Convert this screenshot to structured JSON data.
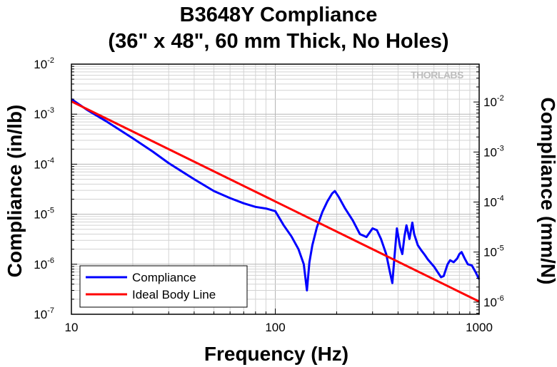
{
  "chart_data": {
    "type": "line",
    "title": "B3648Y Compliance",
    "subtitle": "(36\" x 48\", 60 mm Thick, No Holes)",
    "xlabel": "Frequency (Hz)",
    "ylabel": "Compliance (in/lb)",
    "ylabel_right": "Compliance (mm/N)",
    "x_scale": "log",
    "y_scale": "log",
    "xlim": [
      10,
      1000
    ],
    "ylim": [
      1e-07,
      0.01
    ],
    "ylim_right": [
      5.71e-07,
      0.0571
    ],
    "grid": true,
    "legend_position": "bottom-left",
    "watermark": "THORLABS",
    "x_ticks": [
      {
        "value": 10,
        "label": "10"
      },
      {
        "value": 100,
        "label": "100"
      },
      {
        "value": 1000,
        "label": "1000"
      }
    ],
    "y_ticks": [
      {
        "exp": -7,
        "base": "10",
        "sup": "-7"
      },
      {
        "exp": -6,
        "base": "10",
        "sup": "-6"
      },
      {
        "exp": -5,
        "base": "10",
        "sup": "-5"
      },
      {
        "exp": -4,
        "base": "10",
        "sup": "-4"
      },
      {
        "exp": -3,
        "base": "10",
        "sup": "-3"
      },
      {
        "exp": -2,
        "base": "10",
        "sup": "-2"
      }
    ],
    "y_ticks_right": [
      {
        "exp": -6,
        "base": "10",
        "sup": "-6"
      },
      {
        "exp": -5,
        "base": "10",
        "sup": "-5"
      },
      {
        "exp": -4,
        "base": "10",
        "sup": "-4"
      },
      {
        "exp": -3,
        "base": "10",
        "sup": "-3"
      },
      {
        "exp": -2,
        "base": "10",
        "sup": "-2"
      }
    ],
    "series": [
      {
        "name": "Compliance",
        "color": "#0000ff",
        "x": [
          10,
          12,
          15,
          20,
          25,
          30,
          40,
          50,
          60,
          70,
          80,
          90,
          100,
          110,
          120,
          130,
          138,
          143,
          147,
          152,
          160,
          170,
          180,
          190,
          196,
          205,
          220,
          240,
          260,
          280,
          300,
          315,
          330,
          350,
          365,
          375,
          385,
          395,
          410,
          420,
          430,
          440,
          455,
          470,
          480,
          500,
          520,
          540,
          560,
          600,
          650,
          670,
          700,
          720,
          750,
          780,
          800,
          820,
          850,
          880,
          920,
          960,
          1000
        ],
        "y": [
          0.002,
          0.0012,
          0.0007,
          0.00033,
          0.00018,
          0.000105,
          5e-05,
          2.9e-05,
          2.1e-05,
          1.65e-05,
          1.4e-05,
          1.3e-05,
          1.15e-05,
          6e-06,
          3.6e-06,
          2e-06,
          1e-06,
          3e-07,
          1.1e-06,
          2.4e-06,
          5.5e-06,
          1.1e-05,
          1.8e-05,
          2.6e-05,
          2.9e-05,
          2.2e-05,
          1.3e-05,
          7.5e-06,
          4e-06,
          3.5e-06,
          5.2e-06,
          4.8e-06,
          3.2e-06,
          1.6e-06,
          7e-07,
          4.2e-07,
          1.5e-06,
          5.2e-06,
          2.2e-06,
          1.6e-06,
          3.6e-06,
          6e-06,
          3.2e-06,
          6.8e-06,
          4e-06,
          2.4e-06,
          1.9e-06,
          1.55e-06,
          1.25e-06,
          9e-07,
          5.5e-07,
          5.8e-07,
          1e-06,
          1.2e-06,
          1.1e-06,
          1.3e-06,
          1.6e-06,
          1.75e-06,
          1.3e-06,
          1e-06,
          9.5e-07,
          7e-07,
          5e-07
        ]
      },
      {
        "name": "Ideal Body Line",
        "color": "#ff0000",
        "x": [
          10,
          1000
        ],
        "y": [
          0.0018,
          1.8e-07
        ]
      }
    ]
  }
}
